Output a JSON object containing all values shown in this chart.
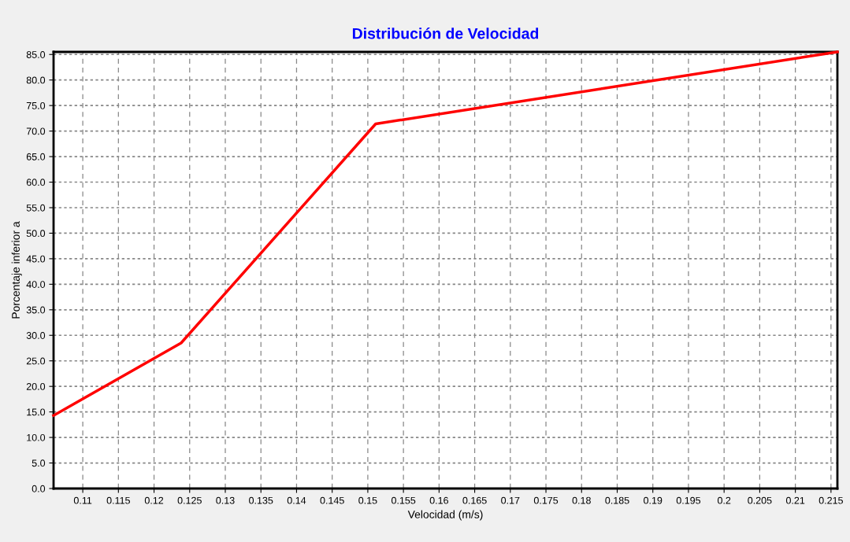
{
  "chart_data": {
    "type": "line",
    "title": "Distribución de Velocidad",
    "xlabel": "Velocidad (m/s)",
    "ylabel": "Porcentaje inferior a",
    "x": [
      0.1059,
      0.1238,
      0.1511,
      0.2159
    ],
    "series": [
      {
        "color": "#ff0000",
        "values": [
          14.3,
          28.5,
          71.4,
          85.5
        ]
      }
    ],
    "xlim": [
      0.1059,
      0.2159
    ],
    "ylim": [
      0,
      85.5
    ],
    "xticks": [
      0.11,
      0.115,
      0.12,
      0.125,
      0.13,
      0.135,
      0.14,
      0.145,
      0.15,
      0.155,
      0.16,
      0.165,
      0.17,
      0.175,
      0.18,
      0.185,
      0.19,
      0.195,
      0.2,
      0.205,
      0.21,
      0.215
    ],
    "yticks": [
      {
        "value": 0,
        "label": "0.0"
      },
      {
        "value": 5,
        "label": "5.0"
      },
      {
        "value": 10,
        "label": "10.0"
      },
      {
        "value": 15,
        "label": "15.0"
      },
      {
        "value": 20,
        "label": "20.0"
      },
      {
        "value": 25,
        "label": "25.0"
      },
      {
        "value": 30,
        "label": "30.0"
      },
      {
        "value": 35,
        "label": "35.0"
      },
      {
        "value": 40,
        "label": "40.0"
      },
      {
        "value": 45,
        "label": "45.0"
      },
      {
        "value": 50,
        "label": "50.0"
      },
      {
        "value": 55,
        "label": "55.0"
      },
      {
        "value": 60,
        "label": "60.0"
      },
      {
        "value": 65,
        "label": "65.0"
      },
      {
        "value": 70,
        "label": "70.0"
      },
      {
        "value": 75,
        "label": "75.0"
      },
      {
        "value": 80,
        "label": "80.0"
      },
      {
        "value": 85,
        "label": "85.0"
      }
    ],
    "grid": true,
    "legend": false,
    "marker": "none",
    "line_style": "solid"
  }
}
